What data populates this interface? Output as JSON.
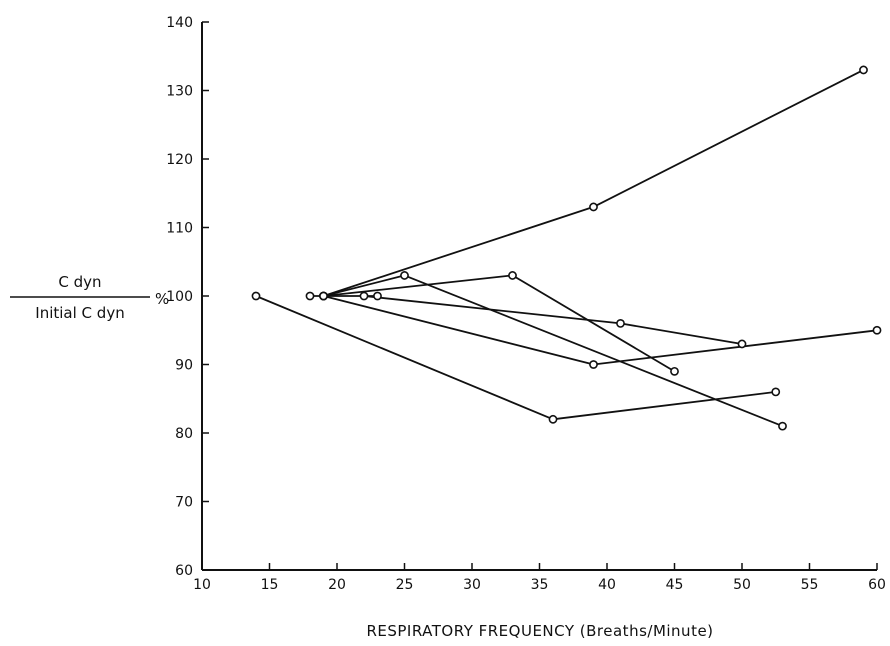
{
  "chart_data": {
    "type": "line",
    "title": "",
    "xlabel": "RESPIRATORY FREQUENCY (Breaths/Minute)",
    "ylabel": {
      "numerator": "C dyn",
      "denominator": "Initial C dyn",
      "unit": "%"
    },
    "xlim": [
      10,
      60
    ],
    "ylim": [
      60,
      140
    ],
    "x_ticks": [
      10,
      15,
      20,
      25,
      30,
      35,
      40,
      45,
      50,
      55,
      60
    ],
    "x_tick_labels": [
      "10",
      "15",
      "20",
      "25",
      "30",
      "35",
      "40",
      "45",
      "50",
      "55",
      "60"
    ],
    "y_ticks": [
      60,
      70,
      80,
      90,
      100,
      110,
      120,
      130,
      140
    ],
    "y_tick_labels": [
      "60",
      "70",
      "80",
      "90",
      "100",
      "110",
      "120",
      "130",
      "140"
    ],
    "grid": false,
    "legend": "none",
    "line_color": "#111111",
    "series": [
      {
        "x": [
          19,
          39,
          59
        ],
        "y": [
          100,
          113,
          133
        ]
      },
      {
        "x": [
          19,
          25,
          53
        ],
        "y": [
          100,
          103,
          81
        ]
      },
      {
        "x": [
          19,
          33,
          45
        ],
        "y": [
          100,
          103,
          89
        ]
      },
      {
        "x": [
          19,
          39,
          60
        ],
        "y": [
          100,
          90,
          95
        ]
      },
      {
        "x": [
          22,
          41,
          50
        ],
        "y": [
          100,
          96,
          93
        ]
      },
      {
        "x": [
          14,
          36,
          52.5
        ],
        "y": [
          100,
          82,
          86
        ]
      },
      {
        "x": [
          18,
          23
        ],
        "y": [
          100,
          100
        ]
      }
    ]
  }
}
